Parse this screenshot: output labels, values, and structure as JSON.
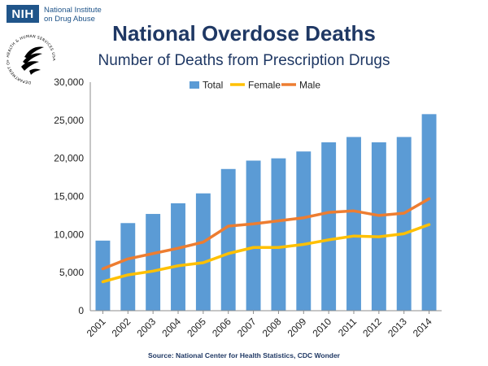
{
  "logo": {
    "nih_text": "NIH",
    "institute_line1": "National Institute",
    "institute_line2": "on Drug Abuse",
    "seal_text": "DEPARTMENT OF HEALTH & HUMAN SERVICES USA"
  },
  "colors": {
    "total": "#5b9bd5",
    "female": "#ffc000",
    "male": "#ed7d31",
    "title": "#1f3864"
  },
  "source": "Source: National Center for Health Statistics, CDC Wonder",
  "chart_data": {
    "type": "bar",
    "title": "National Overdose Deaths",
    "subtitle": "Number of Deaths from Prescription Drugs",
    "xlabel": "",
    "ylabel": "",
    "categories": [
      "2001",
      "2002",
      "2003",
      "2004",
      "2005",
      "2006",
      "2007",
      "2008",
      "2009",
      "2010",
      "2011",
      "2012",
      "2013",
      "2014"
    ],
    "series": [
      {
        "name": "Total",
        "type": "bar",
        "color": "#5b9bd5",
        "values": [
          9200,
          11500,
          12700,
          14100,
          15400,
          18600,
          19700,
          20000,
          20900,
          22100,
          22800,
          22100,
          22800,
          25800
        ]
      },
      {
        "name": "Female",
        "type": "line",
        "color": "#ffc000",
        "values": [
          3800,
          4700,
          5200,
          5900,
          6300,
          7500,
          8300,
          8300,
          8700,
          9300,
          9800,
          9700,
          10100,
          11300
        ]
      },
      {
        "name": "Male",
        "type": "line",
        "color": "#ed7d31",
        "values": [
          5500,
          6800,
          7500,
          8200,
          9000,
          11100,
          11400,
          11800,
          12200,
          12900,
          13100,
          12500,
          12800,
          14700
        ]
      }
    ],
    "ylim": [
      0,
      30000
    ],
    "yticks": [
      0,
      5000,
      10000,
      15000,
      20000,
      25000,
      30000
    ],
    "ytick_labels": [
      "0",
      "5,000",
      "10,000",
      "15,000",
      "20,000",
      "25,000",
      "30,000"
    ],
    "grid": false,
    "legend_position": "top"
  }
}
